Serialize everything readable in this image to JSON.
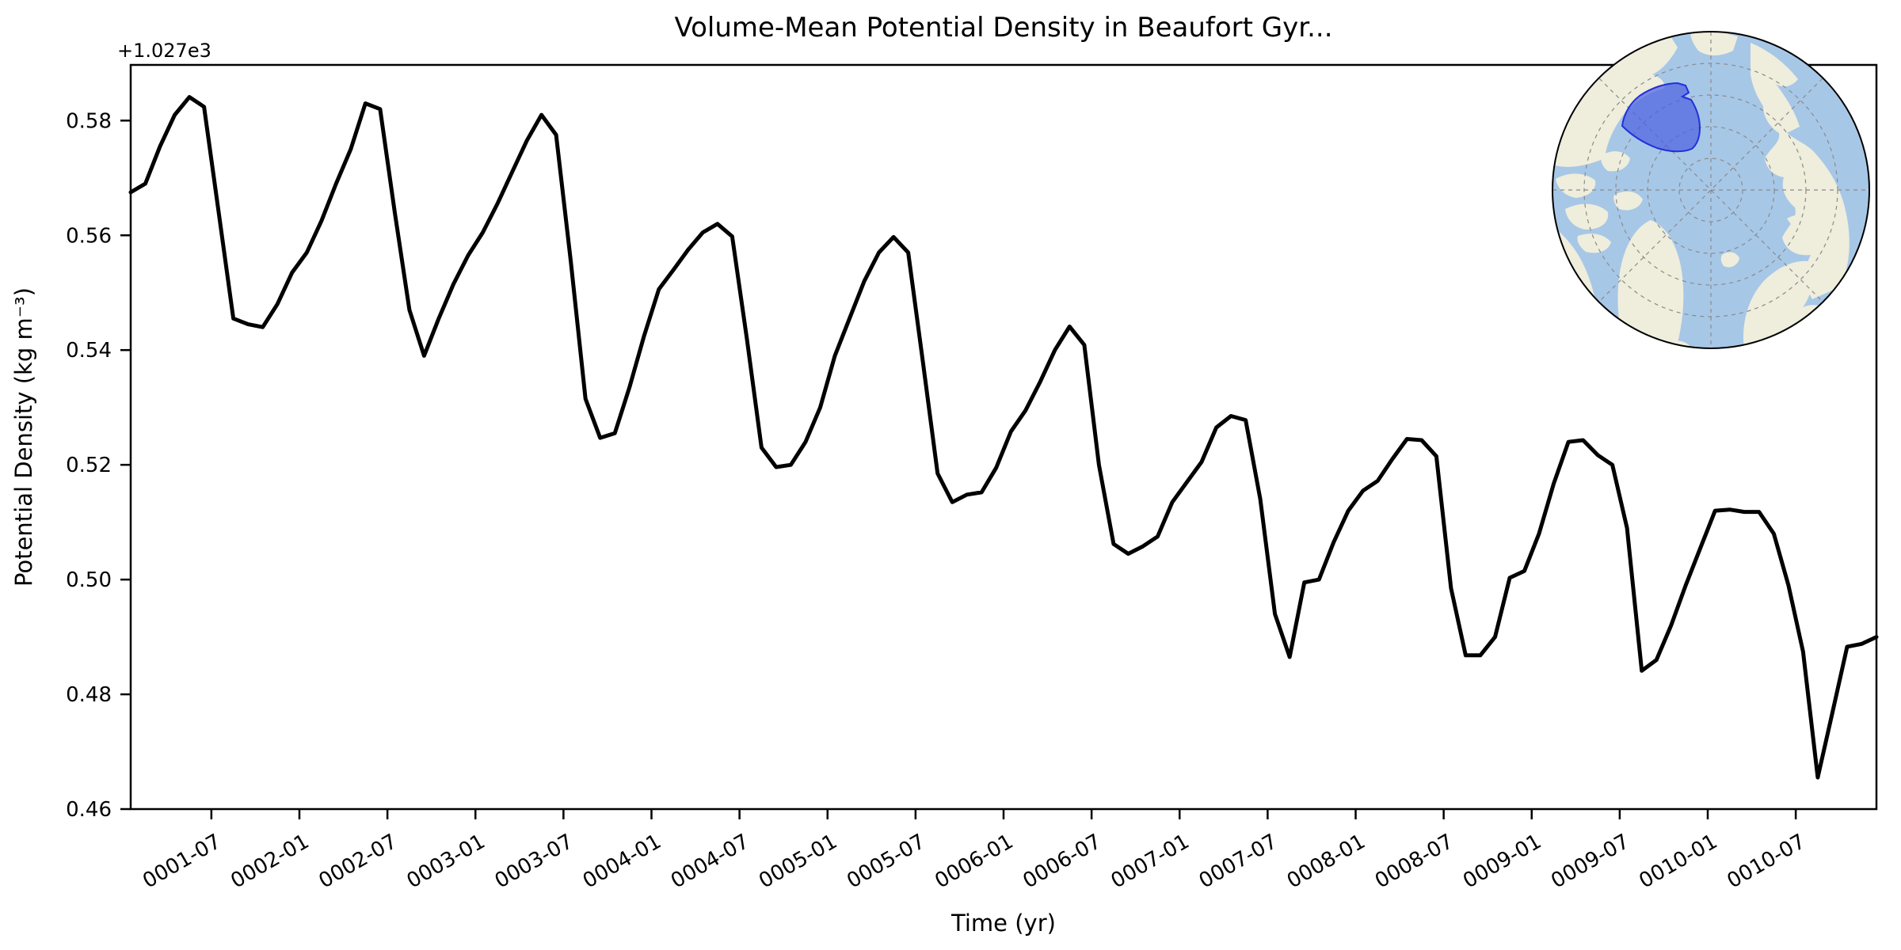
{
  "figure": {
    "title": "Volume-Mean Potential Density in Beaufort Gyr...",
    "background": "#ffffff"
  },
  "axes": {
    "offset_text": "+1.027e3",
    "xlabel": "Time (yr)",
    "ylabel": "Potential Density (kg m⁻³)",
    "x_tick_labels": [
      "0001-07",
      "0002-01",
      "0002-07",
      "0003-01",
      "0003-07",
      "0004-01",
      "0004-07",
      "0005-01",
      "0005-07",
      "0006-01",
      "0006-07",
      "0007-01",
      "0007-07",
      "0008-01",
      "0008-07",
      "0009-01",
      "0009-07",
      "0010-01",
      "0010-07"
    ],
    "y_tick_labels": [
      "0.58",
      "0.56",
      "0.54",
      "0.52",
      "0.50",
      "0.48",
      "0.46"
    ]
  },
  "chart_data": {
    "type": "line",
    "title": "Volume-Mean Potential Density in Beaufort Gyr...",
    "xlabel": "Time (yr)",
    "ylabel": "Potential Density (kg m⁻³)",
    "y_axis_offset_label": "+1.027e3",
    "legend": "none",
    "grid": false,
    "line_color": "#000000",
    "line_width": 5,
    "ylim": [
      1027.46,
      1027.5897
    ],
    "x": [
      "0001-01",
      "0001-02",
      "0001-03",
      "0001-04",
      "0001-05",
      "0001-06",
      "0001-07",
      "0001-08",
      "0001-09",
      "0001-10",
      "0001-11",
      "0001-12",
      "0002-01",
      "0002-02",
      "0002-03",
      "0002-04",
      "0002-05",
      "0002-06",
      "0002-07",
      "0002-08",
      "0002-09",
      "0002-10",
      "0002-11",
      "0002-12",
      "0003-01",
      "0003-02",
      "0003-03",
      "0003-04",
      "0003-05",
      "0003-06",
      "0003-07",
      "0003-08",
      "0003-09",
      "0003-10",
      "0003-11",
      "0003-12",
      "0004-01",
      "0004-02",
      "0004-03",
      "0004-04",
      "0004-05",
      "0004-06",
      "0004-07",
      "0004-08",
      "0004-09",
      "0004-10",
      "0004-11",
      "0004-12",
      "0005-01",
      "0005-02",
      "0005-03",
      "0005-04",
      "0005-05",
      "0005-06",
      "0005-07",
      "0005-08",
      "0005-09",
      "0005-10",
      "0005-11",
      "0005-12",
      "0006-01",
      "0006-02",
      "0006-03",
      "0006-04",
      "0006-05",
      "0006-06",
      "0006-07",
      "0006-08",
      "0006-09",
      "0006-10",
      "0006-11",
      "0006-12",
      "0007-01",
      "0007-02",
      "0007-03",
      "0007-04",
      "0007-05",
      "0007-06",
      "0007-07",
      "0007-08",
      "0007-09",
      "0007-10",
      "0007-11",
      "0007-12",
      "0008-01",
      "0008-02",
      "0008-03",
      "0008-04",
      "0008-05",
      "0008-06",
      "0008-07",
      "0008-08",
      "0008-09",
      "0008-10",
      "0008-11",
      "0008-12",
      "0009-01",
      "0009-02",
      "0009-03",
      "0009-04",
      "0009-05",
      "0009-06",
      "0009-07",
      "0009-08",
      "0009-09",
      "0009-10",
      "0009-11",
      "0009-12",
      "0010-01",
      "0010-02",
      "0010-03",
      "0010-04",
      "0010-05",
      "0010-06",
      "0010-07",
      "0010-08",
      "0010-09",
      "0010-10",
      "0010-11",
      "0010-12"
    ],
    "values": [
      1027.5675,
      1027.569,
      1027.5755,
      1027.581,
      1027.5841,
      1027.5824,
      1027.564,
      1027.5455,
      1027.5445,
      1027.544,
      1027.548,
      1027.5535,
      1027.557,
      1027.5625,
      1027.569,
      1027.575,
      1027.583,
      1027.582,
      1027.564,
      1027.547,
      1027.539,
      1027.5455,
      1027.5515,
      1027.5565,
      1027.5605,
      1027.5655,
      1027.571,
      1027.5765,
      1027.581,
      1027.5775,
      1027.5555,
      1027.5315,
      1027.5247,
      1027.5255,
      1027.5335,
      1027.5425,
      1027.5506,
      1027.554,
      1027.5575,
      1027.5605,
      1027.562,
      1027.5598,
      1027.542,
      1027.523,
      1027.5196,
      1027.52,
      1027.524,
      1027.53,
      1027.539,
      1027.5455,
      1027.552,
      1027.557,
      1027.5597,
      1027.557,
      1027.538,
      1027.5185,
      1027.5135,
      1027.5148,
      1027.5152,
      1027.5195,
      1027.5258,
      1027.5295,
      1027.5345,
      1027.54,
      1027.5441,
      1027.5409,
      1027.52,
      1027.5062,
      1027.5045,
      1027.5058,
      1027.5075,
      1027.5135,
      1027.517,
      1027.5205,
      1027.5265,
      1027.5285,
      1027.5278,
      1027.514,
      1027.494,
      1027.4865,
      1027.4995,
      1027.5,
      1027.5065,
      1027.512,
      1027.5155,
      1027.5172,
      1027.521,
      1027.5245,
      1027.5243,
      1027.5215,
      1027.4985,
      1027.4868,
      1027.4868,
      1027.49,
      1027.5003,
      1027.5015,
      1027.508,
      1027.5167,
      1027.524,
      1027.5243,
      1027.5217,
      1027.52,
      1027.509,
      1027.4841,
      1027.486,
      1027.492,
      1027.499,
      1027.5055,
      1027.512,
      1027.5122,
      1027.5118,
      1027.5118,
      1027.508,
      1027.499,
      1027.4874,
      1027.4655,
      1027.4768,
      1027.4883,
      1027.4888,
      1027.49
    ]
  },
  "inset_map": {
    "description": "Arctic polar stereographic inset with Beaufort Gyre region highlighted",
    "colors": {
      "ocean": "#a7c7e7",
      "land": "#efeddc",
      "region_fill": "#4b5fe1",
      "region_edge": "#2330d8",
      "graticule": "#8a8a8a",
      "border": "#000000"
    }
  }
}
